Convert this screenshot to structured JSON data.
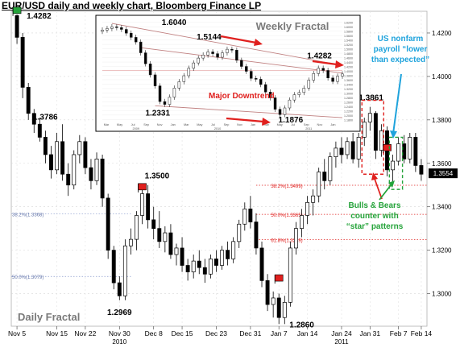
{
  "chart_title": "EUR/USD  daily and weekly chart, Bloomberg Finance LP",
  "colors": {
    "candle_up_fill": "#ffffff",
    "candle_down_fill": "#000000",
    "annotation_red": "#e0201e",
    "annotation_green": "#25a33a",
    "annotation_blue": "#1fa3dc",
    "fib_line": "#e0201e",
    "trend_line": "#c08080"
  },
  "chart_data": [
    {
      "type": "candlestick",
      "name": "Daily Fractal",
      "title": "",
      "label": "Daily Fractal",
      "x_ticks": [
        {
          "label": "Nov 5",
          "x": 0
        },
        {
          "label": "Nov 15",
          "x": 7
        },
        {
          "label": "Nov 22",
          "x": 12
        },
        {
          "label": "Nov 30",
          "x": 18
        },
        {
          "label": "Dec 8",
          "x": 24
        },
        {
          "label": "Dec 15",
          "x": 29
        },
        {
          "label": "Dec 23",
          "x": 35
        },
        {
          "label": "Dec 31",
          "x": 41
        },
        {
          "label": "Jan 7",
          "x": 46
        },
        {
          "label": "Jan 14",
          "x": 51
        },
        {
          "label": "Jan 24",
          "x": 57
        },
        {
          "label": "Jan 31",
          "x": 62
        },
        {
          "label": "Feb 7",
          "x": 67
        },
        {
          "label": "Feb 14",
          "x": 71
        }
      ],
      "x_year_labels": [
        {
          "label": "2010",
          "x": 18
        },
        {
          "label": "2011",
          "x": 57
        }
      ],
      "y_ticks": [
        1.3,
        1.32,
        1.34,
        1.36,
        1.38,
        1.4,
        1.42
      ],
      "ylim": [
        1.285,
        1.43
      ],
      "last_price": "1.3554",
      "fib_levels": [
        {
          "label": "38.2%(1.3499)",
          "value": 1.3499
        },
        {
          "label": "50.0%(1.3365)",
          "value": 1.3365
        },
        {
          "label": "61.8%(1.3249)",
          "value": 1.3249
        }
      ],
      "left_fib_levels": [
        {
          "label": "38.2%(1.3368)",
          "value": 1.3368
        },
        {
          "label": "50.0%(1.3079)",
          "value": 1.3079
        }
      ],
      "price_labels": [
        {
          "text": "1.4282",
          "x": 0,
          "value": 1.4282
        },
        {
          "text": "1.3786",
          "x": 8,
          "value": 1.3786
        },
        {
          "text": "1.3500",
          "x": 23,
          "value": 1.35
        },
        {
          "text": "1.2969",
          "x": 18,
          "value": 1.2969
        },
        {
          "text": "1.2860",
          "x": 46,
          "value": 1.286
        },
        {
          "text": "1.3861",
          "x": 62,
          "value": 1.3861
        }
      ],
      "flags": [
        {
          "x": 0,
          "value": 1.4282
        },
        {
          "x": 22,
          "value": 1.347
        },
        {
          "x": 46,
          "value": 1.305
        },
        {
          "x": 65,
          "value": 1.365
        }
      ],
      "candles": [
        {
          "x": 0,
          "o": 1.428,
          "h": 1.4285,
          "l": 1.415,
          "c": 1.418
        },
        {
          "x": 1,
          "o": 1.418,
          "h": 1.42,
          "l": 1.39,
          "c": 1.395
        },
        {
          "x": 2,
          "o": 1.395,
          "h": 1.397,
          "l": 1.38,
          "c": 1.383
        },
        {
          "x": 3,
          "o": 1.383,
          "h": 1.385,
          "l": 1.374,
          "c": 1.378
        },
        {
          "x": 4,
          "o": 1.378,
          "h": 1.381,
          "l": 1.37,
          "c": 1.372
        },
        {
          "x": 5,
          "o": 1.372,
          "h": 1.375,
          "l": 1.36,
          "c": 1.364
        },
        {
          "x": 6,
          "o": 1.364,
          "h": 1.368,
          "l": 1.353,
          "c": 1.357
        },
        {
          "x": 7,
          "o": 1.357,
          "h": 1.374,
          "l": 1.355,
          "c": 1.37
        },
        {
          "x": 8,
          "o": 1.37,
          "h": 1.378,
          "l": 1.352,
          "c": 1.355
        },
        {
          "x": 9,
          "o": 1.355,
          "h": 1.36,
          "l": 1.345,
          "c": 1.35
        },
        {
          "x": 10,
          "o": 1.35,
          "h": 1.366,
          "l": 1.348,
          "c": 1.364
        },
        {
          "x": 11,
          "o": 1.364,
          "h": 1.373,
          "l": 1.36,
          "c": 1.37
        },
        {
          "x": 12,
          "o": 1.37,
          "h": 1.372,
          "l": 1.355,
          "c": 1.358
        },
        {
          "x": 13,
          "o": 1.358,
          "h": 1.362,
          "l": 1.348,
          "c": 1.352
        },
        {
          "x": 14,
          "o": 1.352,
          "h": 1.365,
          "l": 1.35,
          "c": 1.362
        },
        {
          "x": 15,
          "o": 1.362,
          "h": 1.364,
          "l": 1.34,
          "c": 1.344
        },
        {
          "x": 16,
          "o": 1.344,
          "h": 1.346,
          "l": 1.316,
          "c": 1.32
        },
        {
          "x": 17,
          "o": 1.32,
          "h": 1.322,
          "l": 1.302,
          "c": 1.305
        },
        {
          "x": 18,
          "o": 1.305,
          "h": 1.308,
          "l": 1.297,
          "c": 1.299
        },
        {
          "x": 19,
          "o": 1.299,
          "h": 1.325,
          "l": 1.297,
          "c": 1.322
        },
        {
          "x": 20,
          "o": 1.322,
          "h": 1.33,
          "l": 1.318,
          "c": 1.325
        },
        {
          "x": 21,
          "o": 1.325,
          "h": 1.338,
          "l": 1.32,
          "c": 1.336
        },
        {
          "x": 22,
          "o": 1.336,
          "h": 1.348,
          "l": 1.332,
          "c": 1.346
        },
        {
          "x": 23,
          "o": 1.346,
          "h": 1.35,
          "l": 1.33,
          "c": 1.334
        },
        {
          "x": 24,
          "o": 1.334,
          "h": 1.34,
          "l": 1.325,
          "c": 1.33
        },
        {
          "x": 25,
          "o": 1.33,
          "h": 1.338,
          "l": 1.321,
          "c": 1.324
        },
        {
          "x": 26,
          "o": 1.324,
          "h": 1.331,
          "l": 1.319,
          "c": 1.328
        },
        {
          "x": 27,
          "o": 1.328,
          "h": 1.332,
          "l": 1.316,
          "c": 1.318
        },
        {
          "x": 28,
          "o": 1.318,
          "h": 1.323,
          "l": 1.313,
          "c": 1.321
        },
        {
          "x": 29,
          "o": 1.321,
          "h": 1.326,
          "l": 1.31,
          "c": 1.313
        },
        {
          "x": 30,
          "o": 1.313,
          "h": 1.316,
          "l": 1.306,
          "c": 1.31
        },
        {
          "x": 31,
          "o": 1.31,
          "h": 1.318,
          "l": 1.307,
          "c": 1.315
        },
        {
          "x": 32,
          "o": 1.315,
          "h": 1.32,
          "l": 1.309,
          "c": 1.312
        },
        {
          "x": 33,
          "o": 1.312,
          "h": 1.316,
          "l": 1.305,
          "c": 1.309
        },
        {
          "x": 34,
          "o": 1.309,
          "h": 1.318,
          "l": 1.307,
          "c": 1.316
        },
        {
          "x": 35,
          "o": 1.316,
          "h": 1.32,
          "l": 1.31,
          "c": 1.313
        },
        {
          "x": 36,
          "o": 1.313,
          "h": 1.322,
          "l": 1.311,
          "c": 1.32
        },
        {
          "x": 37,
          "o": 1.32,
          "h": 1.324,
          "l": 1.313,
          "c": 1.316
        },
        {
          "x": 38,
          "o": 1.316,
          "h": 1.326,
          "l": 1.314,
          "c": 1.324
        },
        {
          "x": 39,
          "o": 1.324,
          "h": 1.334,
          "l": 1.321,
          "c": 1.332
        },
        {
          "x": 40,
          "o": 1.332,
          "h": 1.342,
          "l": 1.329,
          "c": 1.339
        },
        {
          "x": 41,
          "o": 1.339,
          "h": 1.345,
          "l": 1.33,
          "c": 1.333
        },
        {
          "x": 42,
          "o": 1.333,
          "h": 1.337,
          "l": 1.318,
          "c": 1.321
        },
        {
          "x": 43,
          "o": 1.321,
          "h": 1.324,
          "l": 1.303,
          "c": 1.306
        },
        {
          "x": 44,
          "o": 1.306,
          "h": 1.309,
          "l": 1.292,
          "c": 1.295
        },
        {
          "x": 45,
          "o": 1.295,
          "h": 1.301,
          "l": 1.289,
          "c": 1.298
        },
        {
          "x": 46,
          "o": 1.298,
          "h": 1.3,
          "l": 1.286,
          "c": 1.289
        },
        {
          "x": 47,
          "o": 1.289,
          "h": 1.299,
          "l": 1.286,
          "c": 1.296
        },
        {
          "x": 48,
          "o": 1.296,
          "h": 1.324,
          "l": 1.294,
          "c": 1.321
        },
        {
          "x": 49,
          "o": 1.321,
          "h": 1.333,
          "l": 1.318,
          "c": 1.33
        },
        {
          "x": 50,
          "o": 1.33,
          "h": 1.339,
          "l": 1.326,
          "c": 1.336
        },
        {
          "x": 51,
          "o": 1.336,
          "h": 1.345,
          "l": 1.332,
          "c": 1.342
        },
        {
          "x": 52,
          "o": 1.342,
          "h": 1.348,
          "l": 1.336,
          "c": 1.345
        },
        {
          "x": 53,
          "o": 1.345,
          "h": 1.358,
          "l": 1.342,
          "c": 1.356
        },
        {
          "x": 54,
          "o": 1.356,
          "h": 1.362,
          "l": 1.348,
          "c": 1.352
        },
        {
          "x": 55,
          "o": 1.352,
          "h": 1.365,
          "l": 1.35,
          "c": 1.363
        },
        {
          "x": 56,
          "o": 1.363,
          "h": 1.37,
          "l": 1.358,
          "c": 1.367
        },
        {
          "x": 57,
          "o": 1.367,
          "h": 1.372,
          "l": 1.36,
          "c": 1.364
        },
        {
          "x": 58,
          "o": 1.364,
          "h": 1.372,
          "l": 1.362,
          "c": 1.37
        },
        {
          "x": 59,
          "o": 1.37,
          "h": 1.374,
          "l": 1.36,
          "c": 1.362
        },
        {
          "x": 60,
          "o": 1.362,
          "h": 1.374,
          "l": 1.358,
          "c": 1.372
        },
        {
          "x": 61,
          "o": 1.372,
          "h": 1.381,
          "l": 1.368,
          "c": 1.379
        },
        {
          "x": 62,
          "o": 1.379,
          "h": 1.386,
          "l": 1.375,
          "c": 1.383
        },
        {
          "x": 63,
          "o": 1.383,
          "h": 1.384,
          "l": 1.362,
          "c": 1.366
        },
        {
          "x": 64,
          "o": 1.366,
          "h": 1.378,
          "l": 1.363,
          "c": 1.375
        },
        {
          "x": 65,
          "o": 1.375,
          "h": 1.377,
          "l": 1.354,
          "c": 1.357
        },
        {
          "x": 66,
          "o": 1.357,
          "h": 1.364,
          "l": 1.351,
          "c": 1.361
        },
        {
          "x": 67,
          "o": 1.361,
          "h": 1.372,
          "l": 1.359,
          "c": 1.369
        },
        {
          "x": 68,
          "o": 1.369,
          "h": 1.373,
          "l": 1.36,
          "c": 1.362
        },
        {
          "x": 69,
          "o": 1.362,
          "h": 1.374,
          "l": 1.36,
          "c": 1.372
        },
        {
          "x": 70,
          "o": 1.372,
          "h": 1.374,
          "l": 1.356,
          "c": 1.359
        },
        {
          "x": 71,
          "o": 1.359,
          "h": 1.362,
          "l": 1.352,
          "c": 1.355
        }
      ]
    },
    {
      "type": "candlestick",
      "name": "Weekly Fractal",
      "label": "Weekly Fractal",
      "annotation": "Major Downtrend",
      "price_labels": [
        {
          "text": "1.6040",
          "x": 5
        },
        {
          "text": "1.5144",
          "x": 22
        },
        {
          "text": "1.4282",
          "x": 43
        },
        {
          "text": "1.2331",
          "x": 13
        },
        {
          "text": "1.1876",
          "x": 36
        }
      ],
      "y_ticks": [
        "1.6200",
        "1.6000",
        "1.5800",
        "1.5600",
        "1.5400",
        "1.5200",
        "1.5000",
        "1.4800",
        "1.4600",
        "1.4400",
        "1.4200",
        "1.4000",
        "1.3800",
        "1.3600",
        "1.3400",
        "1.3200",
        "1.3000",
        "1.2800",
        "1.2600",
        "1.2400",
        "1.2200",
        "1.2000",
        "1.1800"
      ],
      "ylim": [
        1.17,
        1.63
      ],
      "closes": [
        1.585,
        1.592,
        1.6,
        1.596,
        1.588,
        1.571,
        1.552,
        1.531,
        1.482,
        1.432,
        1.382,
        1.332,
        1.261,
        1.248,
        1.281,
        1.322,
        1.351,
        1.378,
        1.412,
        1.436,
        1.458,
        1.472,
        1.486,
        1.478,
        1.462,
        1.482,
        1.498,
        1.494,
        1.448,
        1.42,
        1.398,
        1.366,
        1.362,
        1.338,
        1.304,
        1.278,
        1.226,
        1.202,
        1.232,
        1.268,
        1.292,
        1.302,
        1.322,
        1.358,
        1.388,
        1.412,
        1.402,
        1.368,
        1.352,
        1.376,
        1.386
      ],
      "x_ticks": [
        "Mar",
        "May",
        "Jul",
        "Sep",
        "Nov",
        "Jan",
        "Mar",
        "May",
        "Jul",
        "Sep",
        "Nov",
        "Jan",
        "Mar",
        "May",
        "Jul",
        "Sep",
        "Nov",
        "Jan"
      ],
      "year_labels": [
        "2009",
        "2010",
        "2011"
      ]
    }
  ],
  "annotations": {
    "us_nfp": [
      "US nonfarm",
      "payroll “lower",
      "than expected”"
    ],
    "bulls_bears": [
      "Bulls & Bears",
      "counter with",
      "“star” patterns"
    ]
  }
}
